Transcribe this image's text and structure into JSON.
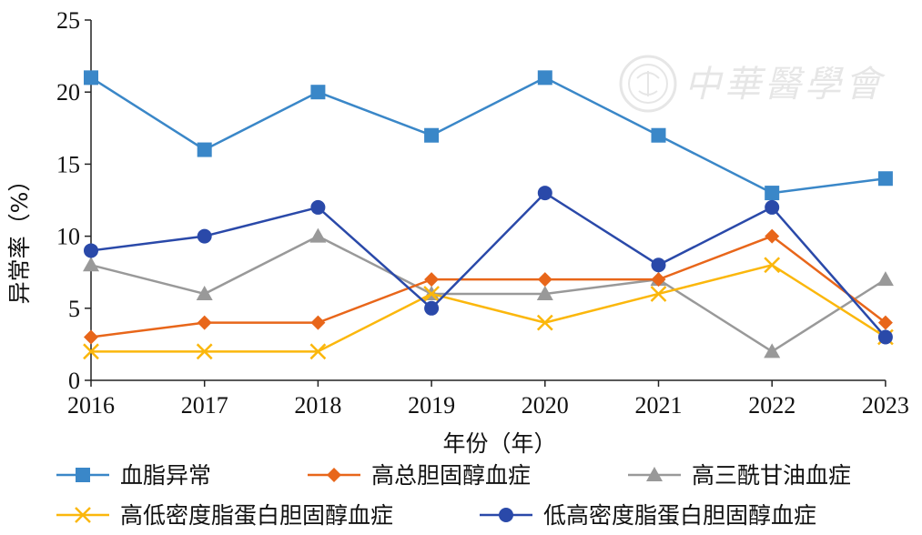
{
  "chart_data": {
    "type": "line",
    "x": [
      "2016",
      "2017",
      "2018",
      "2019",
      "2020",
      "2021",
      "2022",
      "2023"
    ],
    "series": [
      {
        "name": "血脂异常",
        "values": [
          21,
          16,
          20,
          17,
          21,
          17,
          13,
          14
        ],
        "color": "#3a87c8",
        "marker": "square"
      },
      {
        "name": "高总胆固醇血症",
        "values": [
          3,
          4,
          4,
          7,
          7,
          7,
          10,
          4
        ],
        "color": "#e8661a",
        "marker": "diamond"
      },
      {
        "name": "高三酰甘油血症",
        "values": [
          8,
          6,
          10,
          6,
          6,
          7,
          2,
          7
        ],
        "color": "#999999",
        "marker": "triangle"
      },
      {
        "name": "高低密度脂蛋白胆固醇血症",
        "values": [
          2,
          2,
          2,
          6,
          4,
          6,
          8,
          3
        ],
        "color": "#fbb70c",
        "marker": "x"
      },
      {
        "name": "低高密度脂蛋白胆固醇血症",
        "values": [
          9,
          10,
          12,
          5,
          13,
          8,
          12,
          3
        ],
        "color": "#2a49a9",
        "marker": "circle"
      }
    ],
    "xlabel": "年份（年）",
    "ylabel": "异常率（%）",
    "ylim": [
      0,
      25
    ],
    "yticks": [
      0,
      5,
      10,
      15,
      20,
      25
    ],
    "grid": false,
    "legend_position": "bottom"
  },
  "watermark_text": "中華醫學會"
}
